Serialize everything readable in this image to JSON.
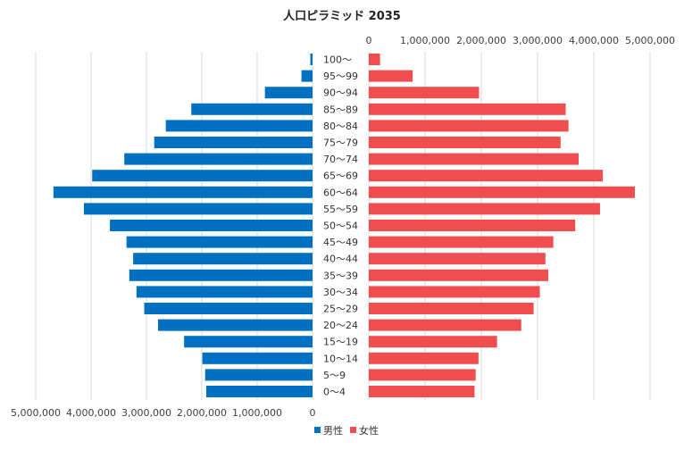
{
  "chart_data": {
    "type": "bar",
    "orientation": "horizontal-population-pyramid",
    "title": "人口ピラミッド 2035",
    "categories": [
      "100～",
      "95～99",
      "90～94",
      "85～89",
      "80～84",
      "75～79",
      "70～74",
      "65～69",
      "60～64",
      "55～59",
      "50～54",
      "45～49",
      "40～44",
      "35～39",
      "30～34",
      "25～29",
      "20～24",
      "15～19",
      "10～14",
      "5～9",
      "0～4"
    ],
    "series": [
      {
        "name": "男性",
        "color": "#0070c0",
        "values": [
          40000,
          200000,
          860000,
          2190000,
          2650000,
          2860000,
          3400000,
          3980000,
          4680000,
          4130000,
          3660000,
          3360000,
          3240000,
          3310000,
          3180000,
          3040000,
          2790000,
          2320000,
          1990000,
          1940000,
          1920000
        ]
      },
      {
        "name": "女性",
        "color": "#f04e4e",
        "values": [
          200000,
          780000,
          1960000,
          3500000,
          3550000,
          3410000,
          3730000,
          4160000,
          4730000,
          4110000,
          3670000,
          3280000,
          3140000,
          3190000,
          3040000,
          2930000,
          2710000,
          2280000,
          1950000,
          1900000,
          1880000
        ]
      }
    ],
    "male_axis": {
      "ticks": [
        5000000,
        4000000,
        3000000,
        2000000,
        1000000,
        0
      ],
      "tick_labels": [
        "5,000,000",
        "4,000,000",
        "3,000,000",
        "2,000,000",
        "1,000,000",
        "0"
      ],
      "range": [
        0,
        5000000
      ],
      "position": "bottom"
    },
    "female_axis": {
      "ticks": [
        0,
        1000000,
        2000000,
        3000000,
        4000000,
        5000000
      ],
      "tick_labels": [
        "0",
        "1,000,000",
        "2,000,000",
        "3,000,000",
        "4,000,000",
        "5,000,000"
      ],
      "range": [
        0,
        5000000
      ],
      "position": "top"
    },
    "legend": {
      "position": "bottom-center",
      "items": [
        "男性",
        "女性"
      ]
    },
    "grid": true
  }
}
